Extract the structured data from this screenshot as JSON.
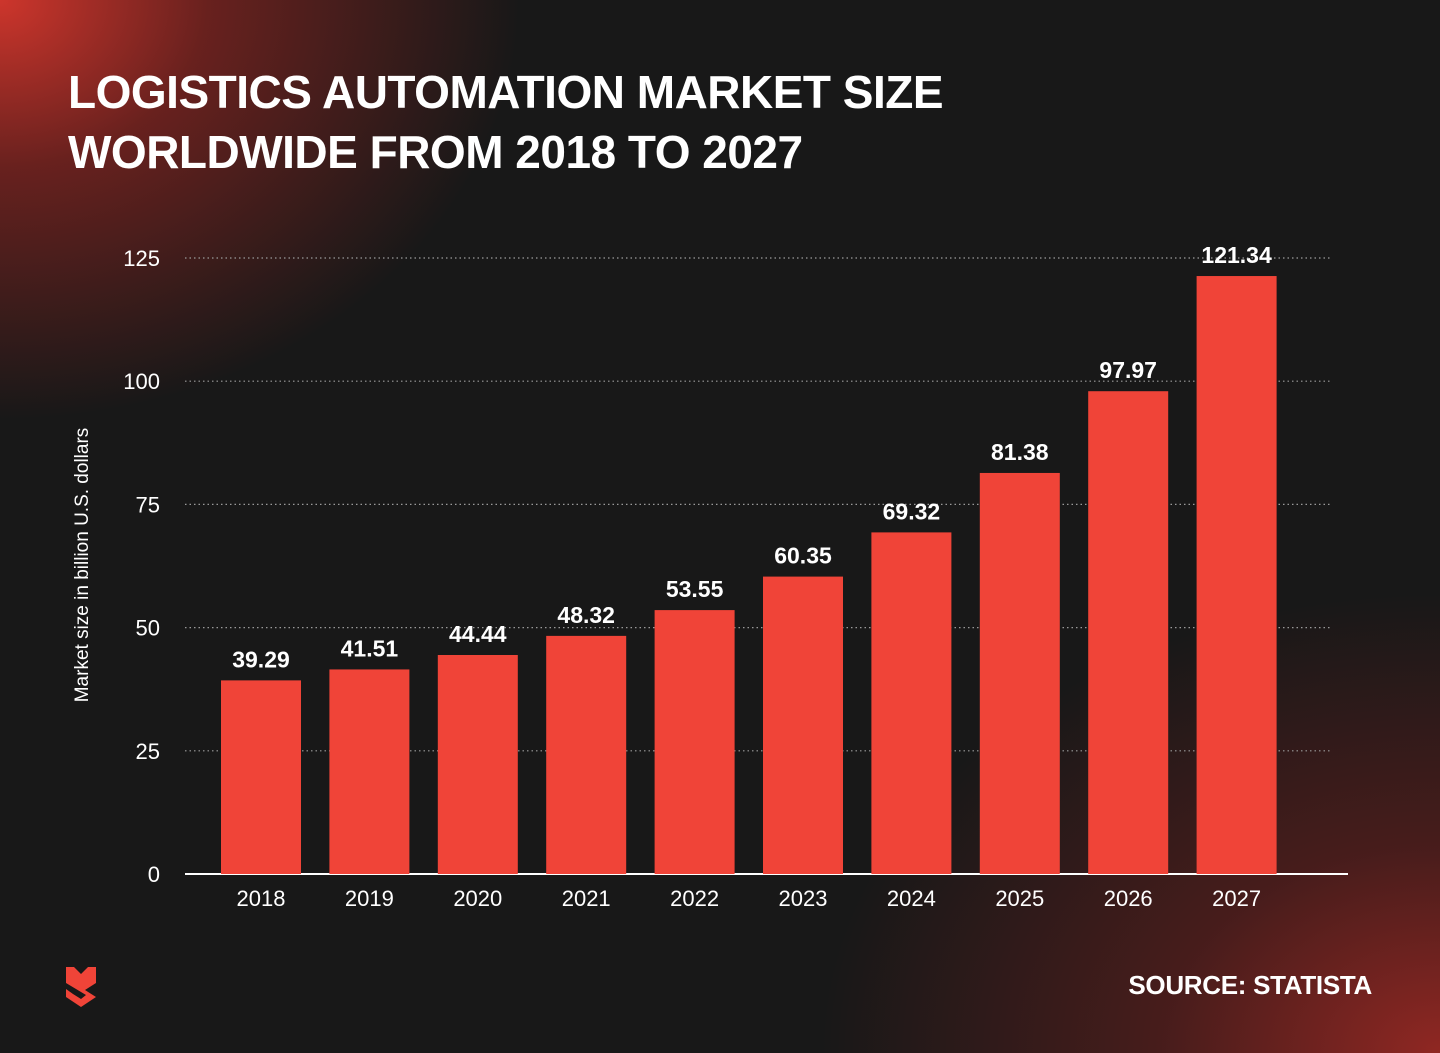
{
  "title": {
    "line1": "LOGISTICS AUTOMATION MARKET SIZE",
    "line2": "WORLDWIDE FROM 2018 TO 2027"
  },
  "source": "SOURCE: STATISTA",
  "logo": {
    "icon": "shield-logo-icon",
    "color": "#f04438"
  },
  "colors": {
    "bar": "#f04438",
    "background": "#181818",
    "text": "#ffffff",
    "gridline": "#9a9a9a"
  },
  "chart_data": {
    "type": "bar",
    "title": "LOGISTICS AUTOMATION MARKET SIZE WORLDWIDE FROM 2018 TO 2027",
    "xlabel": "",
    "ylabel": "Market size in billion U.S. dollars",
    "categories": [
      "2018",
      "2019",
      "2020",
      "2021",
      "2022",
      "2023",
      "2024",
      "2025",
      "2026",
      "2027"
    ],
    "values": [
      39.29,
      41.51,
      44.44,
      48.32,
      53.55,
      60.35,
      69.32,
      81.38,
      97.97,
      121.34
    ],
    "value_labels": [
      "39.29",
      "41.51",
      "44.44",
      "48.32",
      "53.55",
      "60.35",
      "69.32",
      "81.38",
      "97.97",
      "121.34"
    ],
    "ylim": [
      0,
      125
    ],
    "yticks": [
      0,
      25,
      50,
      75,
      100,
      125
    ],
    "grid": true,
    "grid_style": "dotted",
    "legend": "none"
  }
}
